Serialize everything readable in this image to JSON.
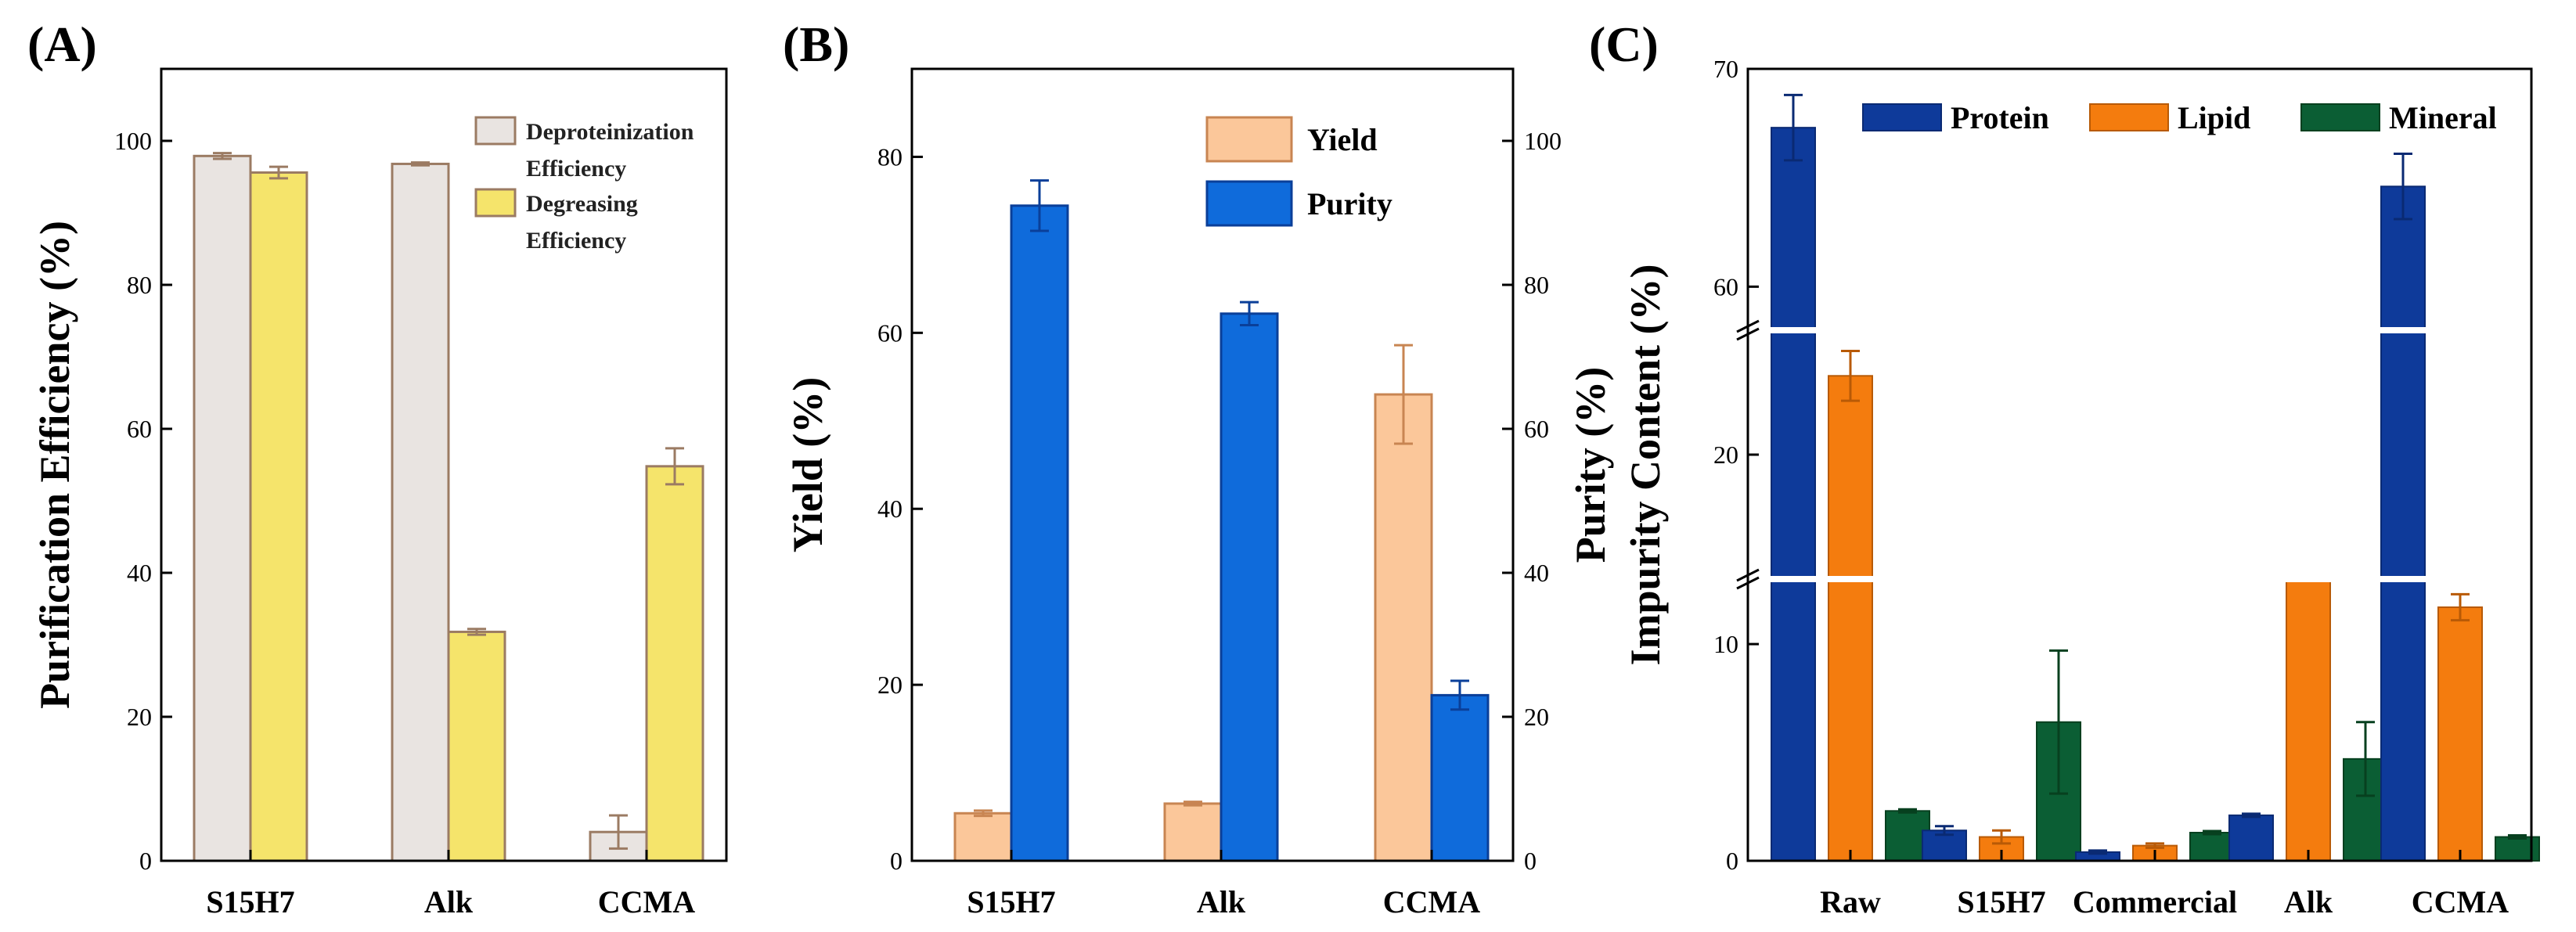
{
  "chart_data": [
    {
      "id": "A",
      "type": "bar",
      "panel_label": "(A)",
      "title": "",
      "xlabel": "",
      "ylabel": "Purification Efficiency (%)",
      "ylim": [
        0,
        110
      ],
      "yticks": [
        0,
        20,
        40,
        60,
        80,
        100
      ],
      "categories": [
        "S15H7",
        "Alk",
        "CCMA"
      ],
      "legend_position": "top-right",
      "series": [
        {
          "name": "Deproteinization Efficiency",
          "legend_lines": [
            "Deproteinization",
            "Efficiency"
          ],
          "values": [
            97.9,
            96.8,
            4.0
          ],
          "errors": [
            0.4,
            0.2,
            2.3
          ],
          "color": "#e9e4e1",
          "edge": "#9b7b63"
        },
        {
          "name": "Degreasing Efficiency",
          "legend_lines": [
            "Degreasing",
            "Efficiency"
          ],
          "values": [
            95.6,
            31.8,
            54.8
          ],
          "errors": [
            0.8,
            0.4,
            2.5
          ],
          "color": "#f5e46b",
          "edge": "#9b7b63"
        }
      ]
    },
    {
      "id": "B",
      "type": "bar",
      "panel_label": "(B)",
      "title": "",
      "xlabel": "",
      "ylabel": "Yield (%)",
      "ylabel_right": "Purity (%)",
      "ylim": [
        0,
        90
      ],
      "yticks": [
        0,
        20,
        40,
        60,
        80
      ],
      "ylim_right": [
        0,
        110
      ],
      "yticks_right": [
        0,
        20,
        40,
        60,
        80,
        100
      ],
      "categories": [
        "S15H7",
        "Alk",
        "CCMA"
      ],
      "legend_position": "top-right",
      "series": [
        {
          "name": "Yield",
          "axis": "left",
          "values": [
            5.4,
            6.5,
            53.0
          ],
          "errors": [
            0.3,
            0.2,
            5.6
          ],
          "color": "#fbc79a",
          "edge": "#c88552"
        },
        {
          "name": "Purity",
          "axis": "right",
          "values": [
            91.0,
            76.0,
            23.0
          ],
          "errors": [
            3.5,
            1.6,
            2.0
          ],
          "color": "#0f6bdb",
          "edge": "#0a3f99"
        }
      ]
    },
    {
      "id": "C",
      "type": "bar",
      "panel_label": "(C)",
      "title": "",
      "xlabel": "",
      "ylabel": "Impurity Content (%)",
      "broken_axis": true,
      "axis_segments": [
        [
          0,
          13
        ],
        [
          17,
          23
        ],
        [
          58,
          70
        ]
      ],
      "yticks": [
        0,
        10,
        20,
        60,
        70
      ],
      "categories": [
        "Raw",
        "S15H7",
        "Commercial",
        "Alk",
        "CCMA"
      ],
      "legend_position": "top",
      "series": [
        {
          "name": "Protein",
          "values": [
            67.3,
            1.4,
            0.4,
            2.1,
            64.6
          ],
          "errors": [
            1.5,
            0.2,
            0,
            0,
            1.5
          ],
          "color": "#0e3a9a",
          "edge": "#0a2a73"
        },
        {
          "name": "Lipid",
          "values": [
            21.9,
            1.1,
            0.7,
            16.1,
            11.7
          ],
          "errors": [
            0.6,
            0.3,
            0.1,
            0,
            0.6
          ],
          "color": "#f47c0e",
          "edge": "#b85a06"
        },
        {
          "name": "Mineral",
          "values": [
            2.3,
            6.4,
            1.3,
            4.7,
            1.1
          ],
          "errors": [
            0,
            3.3,
            0,
            1.7,
            0
          ],
          "color": "#0b5e34",
          "edge": "#07401f"
        }
      ]
    }
  ]
}
